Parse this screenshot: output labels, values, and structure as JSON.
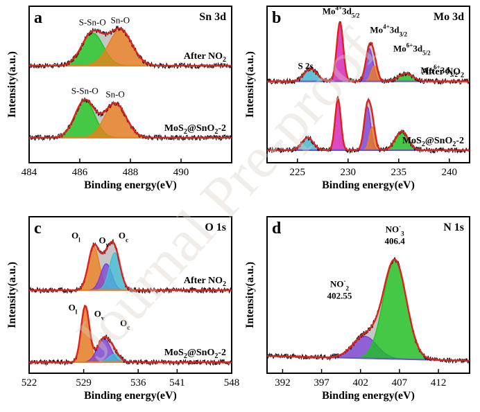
{
  "watermark": "Journal Pre-proof",
  "colors": {
    "red": "#e0201c",
    "green": "#18c81a",
    "orange": "#f07e1a",
    "magenta": "#e020c0",
    "purple": "#7d3fd8",
    "cyan": "#3fc0d8",
    "gray": "#b8b8b8",
    "violet_base": "#6a4fcf"
  },
  "chart_data": [
    {
      "type": "line",
      "panel_letter": "a",
      "title": "Sn 3d",
      "xlabel": "Binding energy(eV)",
      "ylabel": "Intensity(a.u.)",
      "xlim": [
        484,
        492
      ],
      "xticks": [
        484,
        486,
        488,
        490
      ],
      "traces": [
        {
          "label": "After NO₂",
          "labelParts": [
            "After NO",
            "2",
            ""
          ],
          "base": 0.62,
          "height": 0.3,
          "peaks": [
            {
              "name": "S-Sn-O",
              "center": 486.5,
              "width": 0.6,
              "amp": 0.21,
              "color": "green"
            },
            {
              "name": "Sn-O",
              "center": 487.6,
              "width": 0.65,
              "amp": 0.23,
              "color": "orange"
            }
          ]
        },
        {
          "label": "MoS₂@SnO₂-2",
          "labelParts": [
            "MoS",
            "2",
            "@SnO",
            "2",
            "-2"
          ],
          "base": 0.16,
          "height": 0.3,
          "peaks": [
            {
              "name": "S-Sn-O",
              "center": 486.2,
              "width": 0.55,
              "amp": 0.24,
              "color": "green"
            },
            {
              "name": "Sn-O",
              "center": 487.4,
              "width": 0.6,
              "amp": 0.22,
              "color": "orange"
            }
          ]
        }
      ]
    },
    {
      "type": "line",
      "panel_letter": "b",
      "title": "Mo 3d",
      "xlabel": "Binding energy(eV)",
      "ylabel": "Intensity(a.u.)",
      "xlim": [
        222,
        242
      ],
      "xticks": [
        225,
        230,
        235,
        240
      ],
      "traces": [
        {
          "label": "After NO₂",
          "labelParts": [
            "After NO",
            "2",
            ""
          ],
          "base": 0.52,
          "height": 0.4,
          "peaks": [
            {
              "name": "S 2s",
              "center": 226.3,
              "width": 0.9,
              "amp": 0.08,
              "color": "cyan"
            },
            {
              "name": "Mo4+3d5/2",
              "center": 229.2,
              "width": 0.45,
              "amp": 0.38,
              "color": "magenta"
            },
            {
              "name": "Mo4+3d3/2",
              "center": 232.1,
              "width": 0.5,
              "amp": 0.21,
              "color": "purple"
            },
            {
              "name": "Mo6+3d5/2",
              "center": 232.6,
              "width": 0.45,
              "amp": 0.1,
              "color": "orange"
            },
            {
              "name": "Mo6+3d3/2",
              "center": 235.7,
              "width": 1.0,
              "amp": 0.05,
              "color": "green"
            }
          ]
        },
        {
          "label": "MoS₂@SnO₂-2",
          "labelParts": [
            "MoS",
            "2",
            "@SnO",
            "2",
            "-2"
          ],
          "base": 0.08,
          "height": 0.4,
          "peaks": [
            {
              "name": "S 2s",
              "center": 226.0,
              "width": 0.8,
              "amp": 0.08,
              "color": "cyan"
            },
            {
              "name": "Mo4+3d5/2",
              "center": 229.0,
              "width": 0.4,
              "amp": 0.33,
              "color": "magenta"
            },
            {
              "name": "Mo4+3d3/2",
              "center": 231.9,
              "width": 0.45,
              "amp": 0.28,
              "color": "purple"
            },
            {
              "name": "Mo6+3d5/2",
              "center": 232.4,
              "width": 0.4,
              "amp": 0.15,
              "color": "orange"
            },
            {
              "name": "Mo6+3d3/2",
              "center": 235.3,
              "width": 0.9,
              "amp": 0.12,
              "color": "green"
            }
          ]
        }
      ],
      "peak_labels": [
        {
          "parts": [
            "Mo",
            "4+",
            "3d",
            "5/2",
            ""
          ],
          "x": 229.3,
          "y": 0.95
        },
        {
          "parts": [
            "Mo",
            "4+",
            "3d",
            "3/2",
            ""
          ],
          "x": 234.0,
          "y": 0.83
        },
        {
          "parts": [
            "Mo",
            "6+",
            "3d",
            "5/2",
            ""
          ],
          "x": 236.3,
          "y": 0.71
        },
        {
          "parts": [
            "Mo",
            "6+",
            "3d",
            "3/2",
            ""
          ],
          "x": 239.0,
          "y": 0.57
        },
        {
          "parts": [
            "S 2s",
            "",
            "",
            "",
            ""
          ],
          "x": 225.8,
          "y": 0.6
        }
      ]
    },
    {
      "type": "line",
      "panel_letter": "c",
      "title": "O 1s",
      "xlabel": "Binding energy(eV)",
      "ylabel": "Intensity(a.u.)",
      "xlim": [
        522,
        548
      ],
      "xticks": [
        522,
        529,
        536,
        541,
        548
      ],
      "traces": [
        {
          "label": "After NO₂",
          "labelParts": [
            "After NO",
            "2",
            ""
          ],
          "base": 0.53,
          "height": 0.42,
          "peaks": [
            {
              "name": "O_l",
              "center": 530.3,
              "width": 1.0,
              "amp": 0.28,
              "color": "orange"
            },
            {
              "name": "O_v",
              "center": 531.9,
              "width": 1.0,
              "amp": 0.17,
              "color": "purple"
            },
            {
              "name": "O_c",
              "center": 533.0,
              "width": 1.0,
              "amp": 0.24,
              "color": "cyan"
            }
          ]
        },
        {
          "label": "MoS₂@SnO₂-2",
          "labelParts": [
            "MoS",
            "2",
            "@SnO",
            "2",
            "-2"
          ],
          "base": 0.07,
          "height": 0.42,
          "peaks": [
            {
              "name": "O_l",
              "center": 529.2,
              "width": 0.75,
              "amp": 0.36,
              "color": "orange"
            },
            {
              "name": "O_v",
              "center": 531.6,
              "width": 1.2,
              "amp": 0.15,
              "color": "purple"
            },
            {
              "name": "O_c",
              "center": 532.9,
              "width": 1.0,
              "amp": 0.05,
              "color": "cyan"
            }
          ]
        }
      ],
      "peak_labels": [
        {
          "parts": [
            "O",
            "",
            "",
            "l",
            ""
          ],
          "x": 528.0,
          "y": 0.86
        },
        {
          "parts": [
            "O",
            "",
            "",
            "v",
            ""
          ],
          "x": 531.6,
          "y": 0.83
        },
        {
          "parts": [
            "O",
            "",
            "",
            "c",
            ""
          ],
          "x": 534.1,
          "y": 0.86
        },
        {
          "parts": [
            "O",
            "",
            "",
            "l",
            ""
          ],
          "x": 527.6,
          "y": 0.4
        },
        {
          "parts": [
            "O",
            "",
            "",
            "v",
            ""
          ],
          "x": 531.0,
          "y": 0.36
        },
        {
          "parts": [
            "O",
            "",
            "",
            "c",
            ""
          ],
          "x": 534.3,
          "y": 0.3
        }
      ]
    },
    {
      "type": "line",
      "panel_letter": "d",
      "title": "N 1s",
      "xlabel": "Binding energy(eV)",
      "ylabel": "Intensity(a.u.)",
      "xlim": [
        390,
        416
      ],
      "xticks": [
        392,
        397,
        402,
        407,
        412
      ],
      "traces": [
        {
          "label": "",
          "labelParts": [
            "",
            "",
            ""
          ],
          "base": 0.08,
          "height": 0.8,
          "peaks": [
            {
              "name": "NO2-",
              "center": 402.55,
              "width": 2.2,
              "amp": 0.14,
              "color": "purple"
            },
            {
              "name": "NO3-",
              "center": 406.4,
              "width": 2.1,
              "amp": 0.63,
              "color": "green"
            }
          ]
        }
      ],
      "peak_labels": [
        {
          "parts": [
            "NO",
            "-",
            "",
            "2",
            ""
          ],
          "value": "402.55",
          "x": 399.3,
          "y": 0.55
        },
        {
          "parts": [
            "NO",
            "-",
            "",
            "3",
            ""
          ],
          "value": "406.4",
          "x": 406.4,
          "y": 0.9
        }
      ]
    }
  ]
}
